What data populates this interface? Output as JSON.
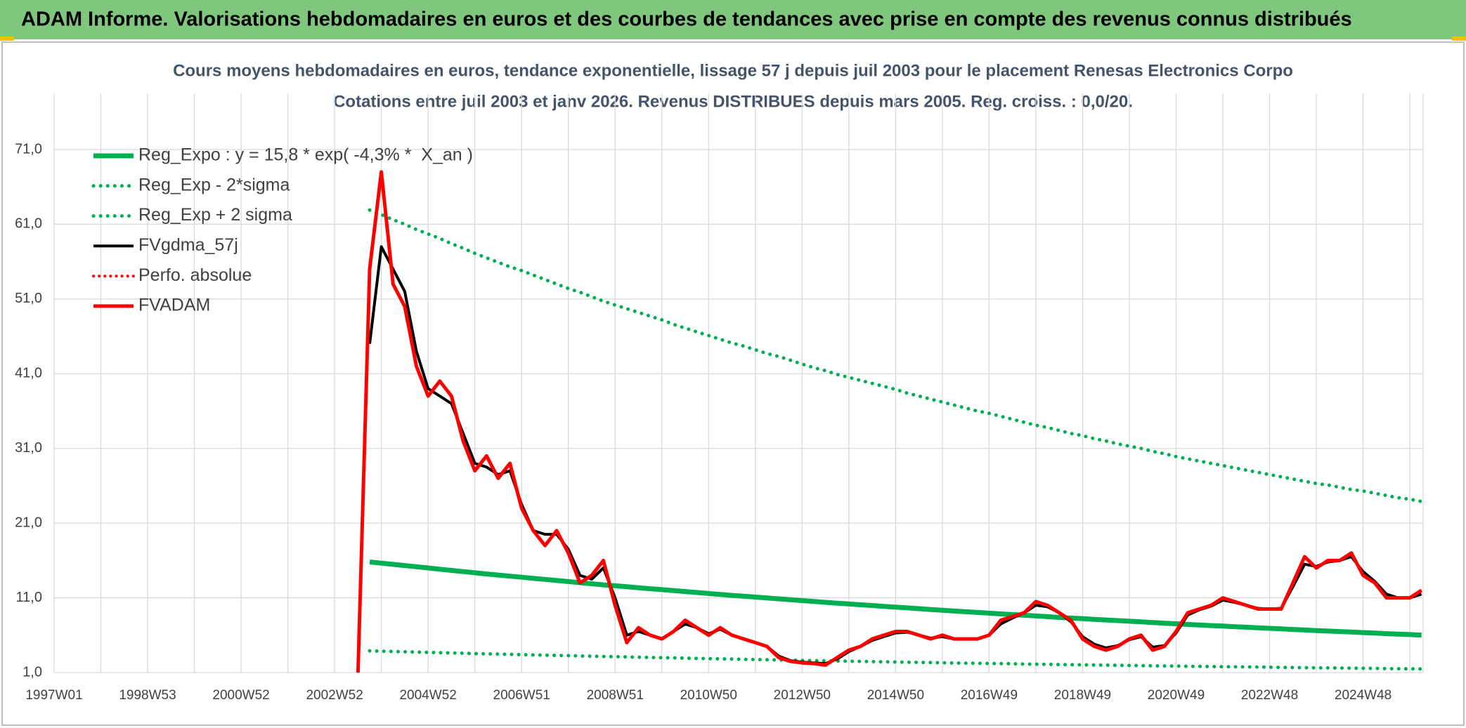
{
  "header": {
    "title": "ADAM Informe. Valorisations hebdomadaires en euros et des courbes de tendances avec prise en compte des revenus connus distribués"
  },
  "chart_data": {
    "type": "line",
    "title": "Cours moyens hebdomadaires en euros, tendance exponentielle, lissage 57 j depuis juil 2003 pour le placement Renesas Electronics Corpo",
    "subtitle": "Cotations entre juil 2003 et janv 2026. Revenus DISTRIBUES depuis mars 2005. Reg. croiss. : 0,0/20.",
    "categories": [
      "1997W01",
      null,
      null,
      null,
      null,
      null,
      null,
      null,
      "1998W53",
      null,
      null,
      null,
      null,
      null,
      null,
      null,
      "2000W52",
      null,
      null,
      null,
      null,
      null,
      null,
      null,
      "2002W52",
      null,
      null,
      null,
      null,
      null,
      null,
      null,
      "2004W52",
      null,
      null,
      null,
      null,
      null,
      null,
      null,
      "2006W51",
      null,
      null,
      null,
      null,
      null,
      null,
      null,
      "2008W51",
      null,
      null,
      null,
      null,
      null,
      null,
      null,
      "2010W50",
      null,
      null,
      null,
      null,
      null,
      null,
      null,
      "2012W50",
      null,
      null,
      null,
      null,
      null,
      null,
      null,
      "2014W50",
      null,
      null,
      null,
      null,
      null,
      null,
      null,
      "2016W49",
      null,
      null,
      null,
      null,
      null,
      null,
      null,
      "2018W49",
      null,
      null,
      null,
      null,
      null,
      null,
      null,
      "2020W49",
      null,
      null,
      null,
      null,
      null,
      null,
      null,
      "2022W48",
      null,
      null,
      null,
      null,
      null,
      null,
      null,
      "2024W48",
      null,
      null,
      null,
      null,
      null
    ],
    "ylim": [
      1,
      71
    ],
    "yticks": [
      {
        "value": 1,
        "label": "1,0"
      },
      {
        "value": 11,
        "label": "11,0"
      },
      {
        "value": 21,
        "label": "21,0"
      },
      {
        "value": 31,
        "label": "31,0"
      },
      {
        "value": 41,
        "label": "41,0"
      },
      {
        "value": 51,
        "label": "51,0"
      },
      {
        "value": 61,
        "label": "61,0"
      },
      {
        "value": 71,
        "label": "71,0"
      }
    ],
    "grid": true,
    "legend": "top-left",
    "series": [
      {
        "name": "Reg_Expo : y = 15,8 * exp( -4,3% *  X_an )",
        "color": "#00b050",
        "style": "solid",
        "values": [
          null,
          null,
          null,
          null,
          null,
          null,
          null,
          null,
          null,
          null,
          null,
          null,
          null,
          null,
          null,
          null,
          null,
          null,
          null,
          null,
          null,
          null,
          null,
          null,
          null,
          null,
          null,
          15.8,
          15.64,
          15.48,
          15.32,
          15.16,
          15.0,
          14.83,
          14.67,
          14.51,
          14.35,
          14.19,
          14.05,
          13.9,
          13.76,
          13.61,
          13.47,
          13.32,
          13.18,
          13.03,
          12.89,
          12.74,
          12.61,
          12.48,
          12.35,
          12.22,
          12.1,
          11.97,
          11.84,
          11.71,
          11.58,
          11.45,
          11.33,
          11.22,
          11.1,
          10.98,
          10.87,
          10.75,
          10.63,
          10.51,
          10.4,
          10.28,
          10.18,
          10.07,
          9.97,
          9.86,
          9.76,
          9.65,
          9.55,
          9.44,
          9.34,
          9.23,
          9.14,
          9.04,
          8.95,
          8.85,
          8.76,
          8.67,
          8.57,
          8.48,
          8.38,
          8.29,
          8.21,
          8.12,
          8.04,
          7.95,
          7.87,
          7.78,
          7.7,
          7.61,
          7.53,
          7.44,
          7.37,
          7.29,
          7.22,
          7.14,
          7.07,
          6.99,
          6.92,
          6.84,
          6.77,
          6.69,
          6.62,
          6.55,
          6.49,
          6.42,
          6.35,
          6.28,
          6.21,
          6.15,
          6.08,
          6.01
        ]
      },
      {
        "name": "Reg_Exp - 2*sigma",
        "color": "#00b050",
        "style": "dotted",
        "values": [
          null,
          null,
          null,
          null,
          null,
          null,
          null,
          null,
          null,
          null,
          null,
          null,
          null,
          null,
          null,
          null,
          null,
          null,
          null,
          null,
          null,
          null,
          null,
          null,
          null,
          null,
          null,
          3.9,
          3.86,
          3.82,
          3.78,
          3.74,
          3.7,
          3.66,
          3.62,
          3.58,
          3.54,
          3.5,
          3.47,
          3.43,
          3.4,
          3.36,
          3.33,
          3.29,
          3.26,
          3.22,
          3.19,
          3.15,
          3.12,
          3.09,
          3.06,
          3.02,
          2.99,
          2.96,
          2.93,
          2.89,
          2.86,
          2.83,
          2.8,
          2.77,
          2.74,
          2.71,
          2.69,
          2.66,
          2.63,
          2.6,
          2.57,
          2.54,
          2.51,
          2.49,
          2.46,
          2.44,
          2.41,
          2.38,
          2.36,
          2.33,
          2.31,
          2.28,
          2.26,
          2.24,
          2.21,
          2.19,
          2.17,
          2.14,
          2.12,
          2.1,
          2.07,
          2.05,
          2.03,
          2.01,
          1.99,
          1.97,
          1.95,
          1.92,
          1.9,
          1.88,
          1.86,
          1.84,
          1.82,
          1.8,
          1.78,
          1.76,
          1.75,
          1.73,
          1.71,
          1.69,
          1.67,
          1.65,
          1.63,
          1.62,
          1.6,
          1.58,
          1.57,
          1.55,
          1.53,
          1.51,
          1.5,
          1.48
        ]
      },
      {
        "name": "Reg_Exp + 2 sigma",
        "color": "#00b050",
        "style": "dotted",
        "values": [
          null,
          null,
          null,
          null,
          null,
          null,
          null,
          null,
          null,
          null,
          null,
          null,
          null,
          null,
          null,
          null,
          null,
          null,
          null,
          null,
          null,
          null,
          null,
          null,
          null,
          null,
          null,
          62.9,
          62.3,
          61.6,
          61.0,
          60.3,
          59.7,
          59.1,
          58.4,
          57.8,
          57.1,
          56.5,
          55.9,
          55.3,
          54.8,
          54.2,
          53.6,
          53.0,
          52.4,
          51.9,
          51.3,
          50.7,
          50.2,
          49.7,
          49.2,
          48.7,
          48.2,
          47.6,
          47.1,
          46.6,
          46.1,
          45.6,
          45.1,
          44.7,
          44.2,
          43.7,
          43.3,
          42.8,
          42.3,
          41.8,
          41.4,
          40.9,
          40.5,
          40.1,
          39.7,
          39.3,
          38.9,
          38.4,
          38.0,
          37.6,
          37.2,
          36.8,
          36.4,
          36.0,
          35.7,
          35.3,
          34.9,
          34.5,
          34.1,
          33.8,
          33.4,
          33.0,
          32.7,
          32.3,
          32.0,
          31.6,
          31.3,
          31.0,
          30.6,
          30.3,
          29.9,
          29.6,
          29.3,
          29.0,
          28.7,
          28.4,
          28.1,
          27.8,
          27.5,
          27.2,
          26.9,
          26.6,
          26.3,
          26.1,
          25.8,
          25.5,
          25.3,
          25.0,
          24.7,
          24.4,
          24.2,
          23.9
        ]
      },
      {
        "name": "FVgdma_57j",
        "color": "#000000",
        "style": "solid",
        "values": [
          null,
          null,
          null,
          null,
          null,
          null,
          null,
          null,
          null,
          null,
          null,
          null,
          null,
          null,
          null,
          null,
          null,
          null,
          null,
          null,
          null,
          null,
          null,
          null,
          null,
          null,
          null,
          45,
          58,
          55,
          52,
          44,
          39,
          38,
          37,
          33,
          29,
          28.5,
          27.5,
          28,
          23.5,
          20,
          19.5,
          19.5,
          17.5,
          14,
          13.5,
          15,
          11,
          6,
          6.5,
          6,
          5.5,
          6.5,
          7.5,
          7,
          6.2,
          6.8,
          6,
          5.5,
          5,
          4.5,
          3.2,
          2.6,
          2.4,
          2.3,
          2.2,
          2.8,
          3.8,
          4.5,
          5.3,
          5.8,
          6.3,
          6.4,
          6,
          5.6,
          5.8,
          5.5,
          5.5,
          5.5,
          6,
          7.5,
          8.3,
          9,
          10,
          9.8,
          9,
          7.8,
          5.8,
          4.8,
          4.3,
          4.6,
          5.4,
          5.8,
          4.4,
          4.6,
          6.3,
          8.7,
          9.4,
          9.9,
          10.7,
          10.4,
          10,
          9.6,
          9.5,
          9.6,
          12.5,
          15.5,
          15.2,
          15.8,
          16,
          16.5,
          14.5,
          13.2,
          11.5,
          11,
          11,
          11.5
        ]
      },
      {
        "name": "Perfo. absolue",
        "color": "#ff0000",
        "style": "dotted",
        "values": [
          null,
          null,
          null,
          null,
          null,
          null,
          null,
          null,
          null,
          null,
          null,
          null,
          null,
          null,
          null,
          null,
          null,
          null,
          null,
          null,
          null,
          null,
          null,
          null,
          null,
          null,
          null,
          null,
          null,
          null,
          null,
          null,
          null,
          null,
          null,
          null,
          null,
          null,
          null,
          null,
          null,
          null,
          null,
          null,
          null,
          null,
          null,
          null,
          null,
          null,
          null,
          null,
          null,
          null,
          null,
          null,
          null,
          null,
          null,
          null,
          null,
          null,
          null,
          null,
          null,
          null,
          null,
          null,
          null,
          null,
          null,
          null,
          null,
          null,
          null,
          null,
          null,
          null,
          null,
          null,
          null,
          null,
          null,
          null,
          null,
          null,
          null,
          null,
          null,
          null,
          null,
          null,
          null,
          null,
          null,
          null,
          null,
          null,
          null,
          null,
          null,
          null,
          null,
          null,
          null,
          null,
          null,
          null,
          null,
          null,
          null,
          null,
          null,
          null,
          null,
          null,
          null,
          null
        ]
      },
      {
        "name": "FVADAM",
        "color": "#ff0000",
        "style": "solid",
        "values": [
          null,
          null,
          null,
          null,
          null,
          null,
          null,
          null,
          null,
          null,
          null,
          null,
          null,
          null,
          null,
          null,
          null,
          null,
          null,
          null,
          null,
          null,
          null,
          null,
          null,
          null,
          1,
          55,
          68,
          53,
          50,
          42,
          38,
          40,
          38,
          32,
          28,
          30,
          27,
          29,
          23,
          20,
          18,
          20,
          17,
          13,
          14,
          16,
          10,
          5,
          7,
          6,
          5.5,
          6.5,
          8,
          7,
          6,
          7,
          6,
          5.5,
          5,
          4.5,
          3,
          2.5,
          2.3,
          2.2,
          2,
          3,
          4,
          4.5,
          5.5,
          6,
          6.5,
          6.5,
          6,
          5.5,
          6,
          5.5,
          5.5,
          5.5,
          6,
          8,
          8.5,
          9,
          10.5,
          10,
          9,
          8,
          5.5,
          4.5,
          4,
          4.5,
          5.5,
          6,
          4,
          4.5,
          6.5,
          9,
          9.5,
          10,
          11,
          10.5,
          10,
          9.5,
          9.5,
          9.5,
          13,
          16.5,
          15,
          16,
          16,
          17,
          14,
          13,
          11,
          11,
          11,
          12
        ]
      }
    ]
  }
}
